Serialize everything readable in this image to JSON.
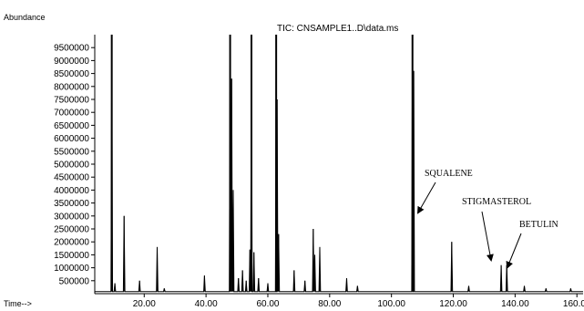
{
  "chart_data": {
    "type": "line",
    "title": "TIC: CNSAMPLE1..D\\data.ms",
    "ylabel": "Abundance",
    "xlabel": "Time-->",
    "xlim": [
      4,
      162
    ],
    "ylim": [
      0,
      10000000
    ],
    "x_ticks": [
      20,
      40,
      60,
      80,
      100,
      120,
      140,
      160
    ],
    "x_tick_labels": [
      "20.00",
      "40.00",
      "60.00",
      "80.00",
      "100.00",
      "120.00",
      "140.00",
      "160.00"
    ],
    "y_ticks": [
      500000,
      1000000,
      1500000,
      2000000,
      2500000,
      3000000,
      3500000,
      4000000,
      4500000,
      5000000,
      5500000,
      6000000,
      6500000,
      7000000,
      7500000,
      8000000,
      8500000,
      9000000,
      9500000
    ],
    "y_tick_labels": [
      "500000",
      "1000000",
      "1500000",
      "2000000",
      "2500000",
      "3000000",
      "3500000",
      "4000000",
      "4500000",
      "5000000",
      "5500000",
      "6000000",
      "6500000",
      "7000000",
      "7500000",
      "8000000",
      "8500000",
      "9000000",
      "9500000"
    ],
    "grid": false,
    "line_color": "#000000",
    "peaks": [
      {
        "x": 9.5,
        "y": 10000000
      },
      {
        "x": 10.5,
        "y": 400000
      },
      {
        "x": 13.5,
        "y": 3000000
      },
      {
        "x": 18.5,
        "y": 500000
      },
      {
        "x": 24.2,
        "y": 1800000
      },
      {
        "x": 26.5,
        "y": 200000
      },
      {
        "x": 39.5,
        "y": 700000
      },
      {
        "x": 47.8,
        "y": 10000000
      },
      {
        "x": 48.3,
        "y": 8300000
      },
      {
        "x": 48.8,
        "y": 4000000
      },
      {
        "x": 50.5,
        "y": 600000
      },
      {
        "x": 51.8,
        "y": 900000
      },
      {
        "x": 53.0,
        "y": 500000
      },
      {
        "x": 54.2,
        "y": 1700000
      },
      {
        "x": 54.7,
        "y": 10000000
      },
      {
        "x": 55.5,
        "y": 1600000
      },
      {
        "x": 57.0,
        "y": 600000
      },
      {
        "x": 60.0,
        "y": 400000
      },
      {
        "x": 62.7,
        "y": 10000000
      },
      {
        "x": 63.0,
        "y": 7500000
      },
      {
        "x": 63.5,
        "y": 2300000
      },
      {
        "x": 68.5,
        "y": 900000
      },
      {
        "x": 72.0,
        "y": 500000
      },
      {
        "x": 74.7,
        "y": 2500000
      },
      {
        "x": 75.2,
        "y": 1500000
      },
      {
        "x": 76.8,
        "y": 1800000
      },
      {
        "x": 85.5,
        "y": 600000
      },
      {
        "x": 89.0,
        "y": 300000
      },
      {
        "x": 106.8,
        "y": 10000000
      },
      {
        "x": 107.2,
        "y": 8600000
      },
      {
        "x": 119.5,
        "y": 2000000
      },
      {
        "x": 125.0,
        "y": 300000
      },
      {
        "x": 135.5,
        "y": 1100000
      },
      {
        "x": 137.3,
        "y": 1100000
      },
      {
        "x": 143.0,
        "y": 300000
      },
      {
        "x": 150.0,
        "y": 200000
      },
      {
        "x": 158.0,
        "y": 200000
      }
    ],
    "annotations": [
      {
        "label": "SQUALENE",
        "x": 107,
        "y": 3800000
      },
      {
        "label": "STIGMASTEROL",
        "x": 135.5,
        "y": 1600000
      },
      {
        "label": "BETULIN",
        "x": 139,
        "y": 1500000
      }
    ]
  }
}
